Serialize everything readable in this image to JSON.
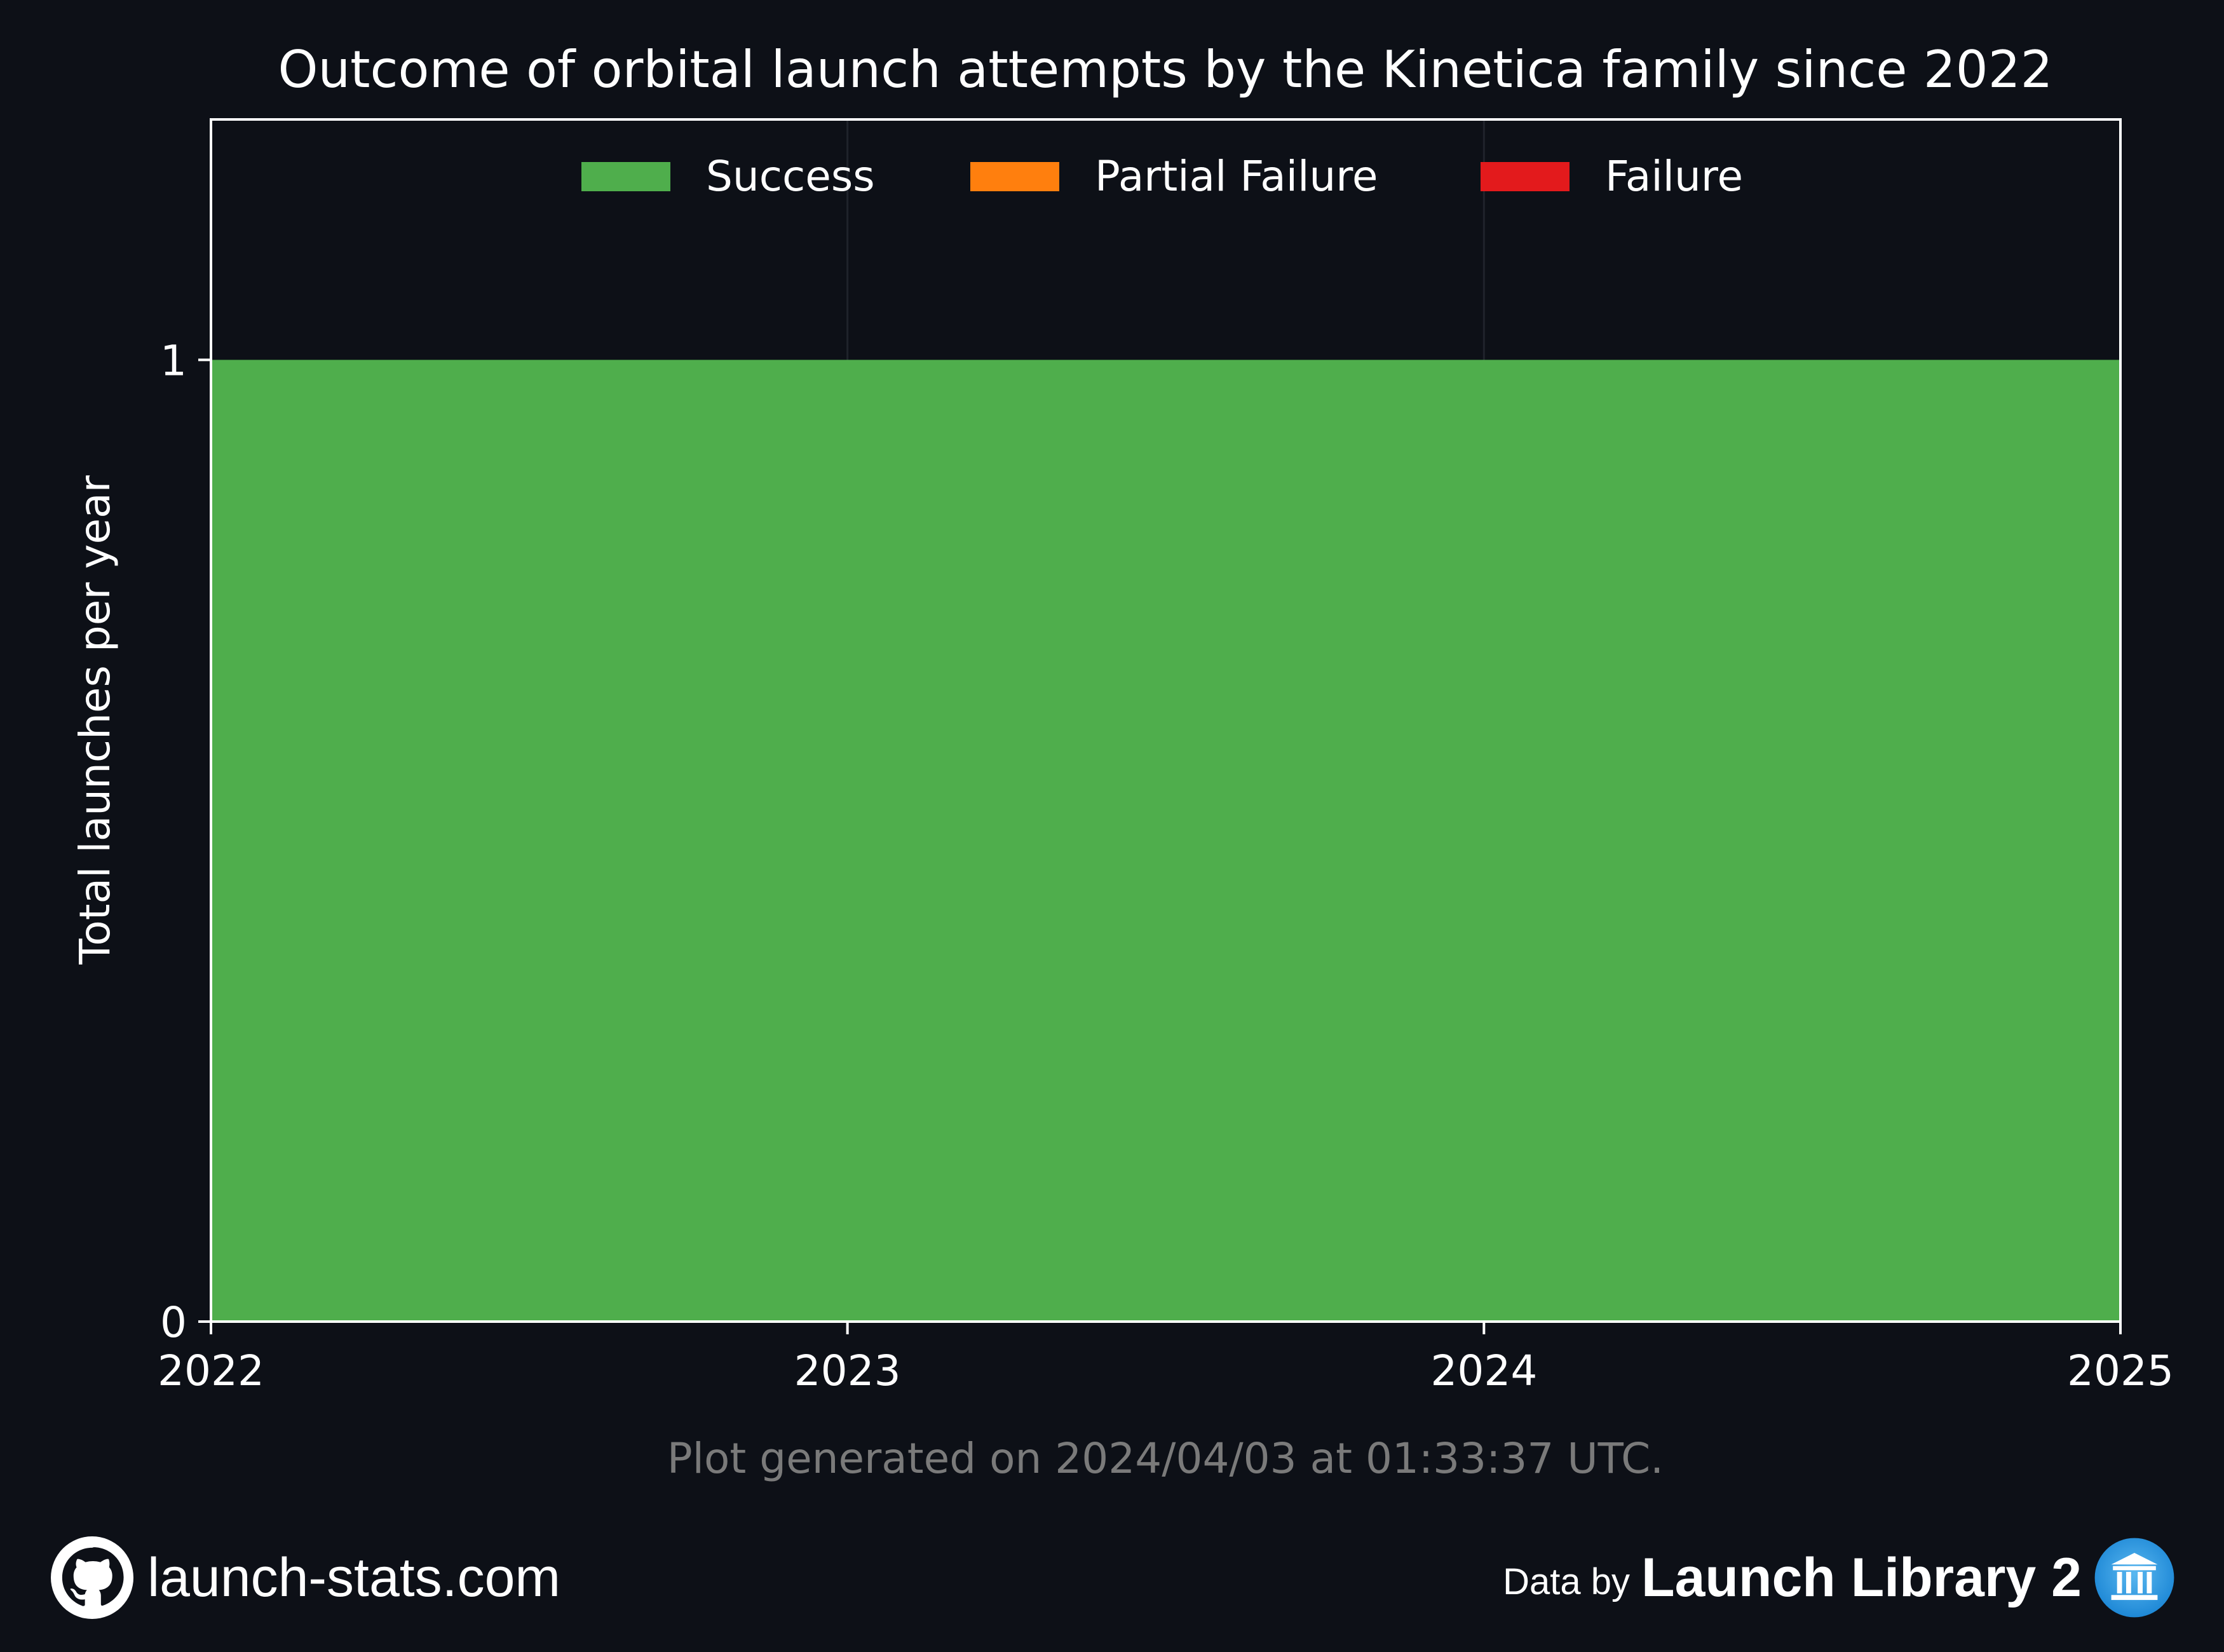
{
  "chart_data": {
    "type": "area",
    "title": "Outcome of orbital launch attempts by the Kinetica family since 2022",
    "ylabel": "Total launches per year",
    "xlabel": "",
    "x": [
      2022,
      2023,
      2024,
      2025
    ],
    "x_tick_labels": [
      "2022",
      "2023",
      "2024",
      "2025"
    ],
    "xlim": [
      2022,
      2025
    ],
    "ylim": [
      0,
      1.25
    ],
    "y_ticks": [
      0,
      1
    ],
    "y_tick_labels": [
      "0",
      "1"
    ],
    "stacked": true,
    "series": [
      {
        "name": "Success",
        "color": "#4fae4c",
        "values": [
          1,
          1,
          1,
          1
        ]
      },
      {
        "name": "Partial Failure",
        "color": "#ff7f0e",
        "values": [
          0,
          0,
          0,
          0
        ]
      },
      {
        "name": "Failure",
        "color": "#e31a1c",
        "values": [
          0,
          0,
          0,
          0
        ]
      }
    ],
    "legend_position": "top-center",
    "grid": "vertical",
    "note": "Plot generated on 2024/04/03 at 01:33:37 UTC."
  },
  "footer": {
    "site": "launch-stats.com",
    "site_icon": "github-icon",
    "data_by": "Data by",
    "source": "Launch Library 2",
    "source_icon": "launch-library-logo-icon"
  },
  "colors": {
    "background": "#0d1017",
    "axes": "#ffffff",
    "note": "#7a7a7a",
    "grid": "#1f232b"
  }
}
